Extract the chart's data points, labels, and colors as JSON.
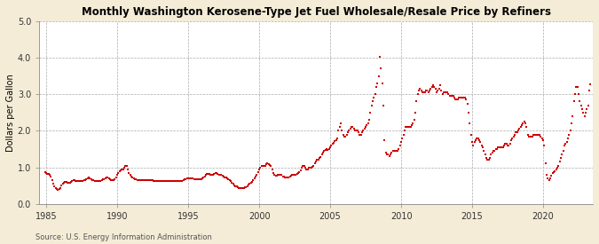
{
  "title": "Monthly Washington Kerosene-Type Jet Fuel Wholesale/Resale Price by Refiners",
  "ylabel": "Dollars per Gallon",
  "source": "Source: U.S. Energy Information Administration",
  "bg_outer": "#f5ecd7",
  "bg_inner": "#ffffff",
  "marker_color": "#cc0000",
  "xlim": [
    1984.5,
    2023.5
  ],
  "ylim": [
    0.0,
    5.0
  ],
  "yticks": [
    0.0,
    1.0,
    2.0,
    3.0,
    4.0,
    5.0
  ],
  "xticks": [
    1985,
    1990,
    1995,
    2000,
    2005,
    2010,
    2015,
    2020
  ],
  "data": [
    [
      1984.917,
      0.87
    ],
    [
      1985.0,
      0.85
    ],
    [
      1985.083,
      0.82
    ],
    [
      1985.167,
      0.82
    ],
    [
      1985.25,
      0.8
    ],
    [
      1985.333,
      0.75
    ],
    [
      1985.417,
      0.65
    ],
    [
      1985.5,
      0.55
    ],
    [
      1985.583,
      0.48
    ],
    [
      1985.667,
      0.42
    ],
    [
      1985.75,
      0.4
    ],
    [
      1985.833,
      0.38
    ],
    [
      1985.917,
      0.4
    ],
    [
      1986.0,
      0.42
    ],
    [
      1986.083,
      0.5
    ],
    [
      1986.167,
      0.55
    ],
    [
      1986.25,
      0.57
    ],
    [
      1986.333,
      0.6
    ],
    [
      1986.417,
      0.6
    ],
    [
      1986.5,
      0.58
    ],
    [
      1986.583,
      0.57
    ],
    [
      1986.667,
      0.58
    ],
    [
      1986.75,
      0.6
    ],
    [
      1986.833,
      0.62
    ],
    [
      1986.917,
      0.65
    ],
    [
      1987.0,
      0.65
    ],
    [
      1987.083,
      0.63
    ],
    [
      1987.167,
      0.62
    ],
    [
      1987.25,
      0.62
    ],
    [
      1987.333,
      0.63
    ],
    [
      1987.417,
      0.63
    ],
    [
      1987.5,
      0.63
    ],
    [
      1987.583,
      0.63
    ],
    [
      1987.667,
      0.64
    ],
    [
      1987.75,
      0.65
    ],
    [
      1987.833,
      0.67
    ],
    [
      1987.917,
      0.7
    ],
    [
      1988.0,
      0.72
    ],
    [
      1988.083,
      0.7
    ],
    [
      1988.167,
      0.68
    ],
    [
      1988.25,
      0.66
    ],
    [
      1988.333,
      0.65
    ],
    [
      1988.417,
      0.63
    ],
    [
      1988.5,
      0.62
    ],
    [
      1988.583,
      0.62
    ],
    [
      1988.667,
      0.63
    ],
    [
      1988.75,
      0.63
    ],
    [
      1988.833,
      0.63
    ],
    [
      1988.917,
      0.65
    ],
    [
      1989.0,
      0.67
    ],
    [
      1989.083,
      0.68
    ],
    [
      1989.167,
      0.7
    ],
    [
      1989.25,
      0.72
    ],
    [
      1989.333,
      0.72
    ],
    [
      1989.417,
      0.7
    ],
    [
      1989.5,
      0.68
    ],
    [
      1989.583,
      0.66
    ],
    [
      1989.667,
      0.65
    ],
    [
      1989.75,
      0.65
    ],
    [
      1989.833,
      0.67
    ],
    [
      1989.917,
      0.72
    ],
    [
      1990.0,
      0.8
    ],
    [
      1990.083,
      0.85
    ],
    [
      1990.167,
      0.9
    ],
    [
      1990.25,
      0.92
    ],
    [
      1990.333,
      0.95
    ],
    [
      1990.417,
      0.95
    ],
    [
      1990.5,
      1.0
    ],
    [
      1990.583,
      1.05
    ],
    [
      1990.667,
      1.05
    ],
    [
      1990.75,
      0.95
    ],
    [
      1990.833,
      0.85
    ],
    [
      1990.917,
      0.8
    ],
    [
      1991.0,
      0.75
    ],
    [
      1991.083,
      0.72
    ],
    [
      1991.167,
      0.7
    ],
    [
      1991.25,
      0.68
    ],
    [
      1991.333,
      0.67
    ],
    [
      1991.417,
      0.65
    ],
    [
      1991.5,
      0.65
    ],
    [
      1991.583,
      0.65
    ],
    [
      1991.667,
      0.65
    ],
    [
      1991.75,
      0.65
    ],
    [
      1991.833,
      0.65
    ],
    [
      1991.917,
      0.65
    ],
    [
      1992.0,
      0.65
    ],
    [
      1992.083,
      0.65
    ],
    [
      1992.167,
      0.65
    ],
    [
      1992.25,
      0.65
    ],
    [
      1992.333,
      0.65
    ],
    [
      1992.417,
      0.65
    ],
    [
      1992.5,
      0.65
    ],
    [
      1992.583,
      0.63
    ],
    [
      1992.667,
      0.62
    ],
    [
      1992.75,
      0.62
    ],
    [
      1992.833,
      0.62
    ],
    [
      1992.917,
      0.63
    ],
    [
      1993.0,
      0.63
    ],
    [
      1993.083,
      0.62
    ],
    [
      1993.167,
      0.62
    ],
    [
      1993.25,
      0.62
    ],
    [
      1993.333,
      0.62
    ],
    [
      1993.417,
      0.62
    ],
    [
      1993.5,
      0.62
    ],
    [
      1993.583,
      0.62
    ],
    [
      1993.667,
      0.62
    ],
    [
      1993.75,
      0.62
    ],
    [
      1993.833,
      0.62
    ],
    [
      1993.917,
      0.62
    ],
    [
      1994.0,
      0.62
    ],
    [
      1994.083,
      0.62
    ],
    [
      1994.167,
      0.62
    ],
    [
      1994.25,
      0.63
    ],
    [
      1994.333,
      0.63
    ],
    [
      1994.417,
      0.63
    ],
    [
      1994.5,
      0.63
    ],
    [
      1994.583,
      0.63
    ],
    [
      1994.667,
      0.65
    ],
    [
      1994.75,
      0.67
    ],
    [
      1994.833,
      0.68
    ],
    [
      1994.917,
      0.7
    ],
    [
      1995.0,
      0.7
    ],
    [
      1995.083,
      0.7
    ],
    [
      1995.167,
      0.7
    ],
    [
      1995.25,
      0.7
    ],
    [
      1995.333,
      0.7
    ],
    [
      1995.417,
      0.68
    ],
    [
      1995.5,
      0.67
    ],
    [
      1995.583,
      0.67
    ],
    [
      1995.667,
      0.67
    ],
    [
      1995.75,
      0.68
    ],
    [
      1995.833,
      0.68
    ],
    [
      1995.917,
      0.68
    ],
    [
      1996.0,
      0.7
    ],
    [
      1996.083,
      0.73
    ],
    [
      1996.167,
      0.75
    ],
    [
      1996.25,
      0.8
    ],
    [
      1996.333,
      0.82
    ],
    [
      1996.417,
      0.82
    ],
    [
      1996.5,
      0.82
    ],
    [
      1996.583,
      0.8
    ],
    [
      1996.667,
      0.8
    ],
    [
      1996.75,
      0.8
    ],
    [
      1996.833,
      0.82
    ],
    [
      1996.917,
      0.85
    ],
    [
      1997.0,
      0.85
    ],
    [
      1997.083,
      0.82
    ],
    [
      1997.167,
      0.8
    ],
    [
      1997.25,
      0.8
    ],
    [
      1997.333,
      0.8
    ],
    [
      1997.417,
      0.78
    ],
    [
      1997.5,
      0.75
    ],
    [
      1997.583,
      0.73
    ],
    [
      1997.667,
      0.72
    ],
    [
      1997.75,
      0.7
    ],
    [
      1997.833,
      0.68
    ],
    [
      1997.917,
      0.65
    ],
    [
      1998.0,
      0.62
    ],
    [
      1998.083,
      0.58
    ],
    [
      1998.167,
      0.55
    ],
    [
      1998.25,
      0.5
    ],
    [
      1998.333,
      0.48
    ],
    [
      1998.417,
      0.47
    ],
    [
      1998.5,
      0.46
    ],
    [
      1998.583,
      0.44
    ],
    [
      1998.667,
      0.44
    ],
    [
      1998.75,
      0.44
    ],
    [
      1998.833,
      0.44
    ],
    [
      1998.917,
      0.44
    ],
    [
      1999.0,
      0.45
    ],
    [
      1999.083,
      0.45
    ],
    [
      1999.167,
      0.48
    ],
    [
      1999.25,
      0.52
    ],
    [
      1999.333,
      0.55
    ],
    [
      1999.417,
      0.58
    ],
    [
      1999.5,
      0.6
    ],
    [
      1999.583,
      0.65
    ],
    [
      1999.667,
      0.7
    ],
    [
      1999.75,
      0.75
    ],
    [
      1999.833,
      0.8
    ],
    [
      1999.917,
      0.88
    ],
    [
      2000.0,
      0.95
    ],
    [
      2000.083,
      1.0
    ],
    [
      2000.167,
      1.05
    ],
    [
      2000.25,
      1.05
    ],
    [
      2000.333,
      1.05
    ],
    [
      2000.417,
      1.05
    ],
    [
      2000.5,
      1.08
    ],
    [
      2000.583,
      1.1
    ],
    [
      2000.667,
      1.08
    ],
    [
      2000.75,
      1.07
    ],
    [
      2000.833,
      1.05
    ],
    [
      2000.917,
      0.95
    ],
    [
      2001.0,
      0.85
    ],
    [
      2001.083,
      0.8
    ],
    [
      2001.167,
      0.78
    ],
    [
      2001.25,
      0.78
    ],
    [
      2001.333,
      0.8
    ],
    [
      2001.417,
      0.8
    ],
    [
      2001.5,
      0.8
    ],
    [
      2001.583,
      0.8
    ],
    [
      2001.667,
      0.75
    ],
    [
      2001.75,
      0.75
    ],
    [
      2001.833,
      0.72
    ],
    [
      2001.917,
      0.72
    ],
    [
      2002.0,
      0.72
    ],
    [
      2002.083,
      0.72
    ],
    [
      2002.167,
      0.75
    ],
    [
      2002.25,
      0.78
    ],
    [
      2002.333,
      0.8
    ],
    [
      2002.417,
      0.8
    ],
    [
      2002.5,
      0.8
    ],
    [
      2002.583,
      0.8
    ],
    [
      2002.667,
      0.82
    ],
    [
      2002.75,
      0.85
    ],
    [
      2002.833,
      0.88
    ],
    [
      2002.917,
      0.92
    ],
    [
      2003.0,
      1.0
    ],
    [
      2003.083,
      1.05
    ],
    [
      2003.167,
      1.05
    ],
    [
      2003.25,
      0.98
    ],
    [
      2003.333,
      0.95
    ],
    [
      2003.417,
      0.95
    ],
    [
      2003.5,
      0.98
    ],
    [
      2003.583,
      1.0
    ],
    [
      2003.667,
      1.0
    ],
    [
      2003.75,
      1.02
    ],
    [
      2003.833,
      1.05
    ],
    [
      2003.917,
      1.1
    ],
    [
      2004.0,
      1.15
    ],
    [
      2004.083,
      1.2
    ],
    [
      2004.167,
      1.22
    ],
    [
      2004.25,
      1.25
    ],
    [
      2004.333,
      1.28
    ],
    [
      2004.417,
      1.35
    ],
    [
      2004.5,
      1.4
    ],
    [
      2004.583,
      1.45
    ],
    [
      2004.667,
      1.48
    ],
    [
      2004.75,
      1.5
    ],
    [
      2004.833,
      1.48
    ],
    [
      2004.917,
      1.5
    ],
    [
      2005.0,
      1.55
    ],
    [
      2005.083,
      1.6
    ],
    [
      2005.167,
      1.65
    ],
    [
      2005.25,
      1.68
    ],
    [
      2005.333,
      1.72
    ],
    [
      2005.417,
      1.75
    ],
    [
      2005.5,
      1.8
    ],
    [
      2005.583,
      2.0
    ],
    [
      2005.667,
      2.1
    ],
    [
      2005.75,
      2.2
    ],
    [
      2005.833,
      2.0
    ],
    [
      2005.917,
      1.9
    ],
    [
      2006.0,
      1.85
    ],
    [
      2006.083,
      1.85
    ],
    [
      2006.167,
      1.9
    ],
    [
      2006.25,
      1.95
    ],
    [
      2006.333,
      2.0
    ],
    [
      2006.417,
      2.05
    ],
    [
      2006.5,
      2.1
    ],
    [
      2006.583,
      2.1
    ],
    [
      2006.667,
      2.05
    ],
    [
      2006.75,
      2.0
    ],
    [
      2006.833,
      2.0
    ],
    [
      2006.917,
      2.0
    ],
    [
      2007.0,
      1.95
    ],
    [
      2007.083,
      1.9
    ],
    [
      2007.167,
      1.9
    ],
    [
      2007.25,
      1.95
    ],
    [
      2007.333,
      2.0
    ],
    [
      2007.417,
      2.05
    ],
    [
      2007.5,
      2.1
    ],
    [
      2007.583,
      2.15
    ],
    [
      2007.667,
      2.2
    ],
    [
      2007.75,
      2.3
    ],
    [
      2007.833,
      2.5
    ],
    [
      2007.917,
      2.7
    ],
    [
      2008.0,
      2.8
    ],
    [
      2008.083,
      2.9
    ],
    [
      2008.167,
      3.0
    ],
    [
      2008.25,
      3.2
    ],
    [
      2008.333,
      3.3
    ],
    [
      2008.417,
      3.5
    ],
    [
      2008.5,
      4.02
    ],
    [
      2008.583,
      3.7
    ],
    [
      2008.667,
      3.3
    ],
    [
      2008.75,
      2.7
    ],
    [
      2008.833,
      1.75
    ],
    [
      2008.917,
      1.4
    ],
    [
      2009.0,
      1.35
    ],
    [
      2009.083,
      1.35
    ],
    [
      2009.167,
      1.3
    ],
    [
      2009.25,
      1.35
    ],
    [
      2009.333,
      1.4
    ],
    [
      2009.417,
      1.45
    ],
    [
      2009.5,
      1.45
    ],
    [
      2009.583,
      1.45
    ],
    [
      2009.667,
      1.45
    ],
    [
      2009.75,
      1.45
    ],
    [
      2009.833,
      1.5
    ],
    [
      2009.917,
      1.6
    ],
    [
      2010.0,
      1.7
    ],
    [
      2010.083,
      1.8
    ],
    [
      2010.167,
      1.9
    ],
    [
      2010.25,
      2.0
    ],
    [
      2010.333,
      2.1
    ],
    [
      2010.417,
      2.1
    ],
    [
      2010.5,
      2.1
    ],
    [
      2010.583,
      2.1
    ],
    [
      2010.667,
      2.1
    ],
    [
      2010.75,
      2.15
    ],
    [
      2010.833,
      2.2
    ],
    [
      2010.917,
      2.3
    ],
    [
      2011.0,
      2.5
    ],
    [
      2011.083,
      2.8
    ],
    [
      2011.167,
      3.0
    ],
    [
      2011.25,
      3.1
    ],
    [
      2011.333,
      3.15
    ],
    [
      2011.417,
      3.1
    ],
    [
      2011.5,
      3.05
    ],
    [
      2011.583,
      3.05
    ],
    [
      2011.667,
      3.05
    ],
    [
      2011.75,
      3.1
    ],
    [
      2011.833,
      3.1
    ],
    [
      2011.917,
      3.05
    ],
    [
      2012.0,
      3.1
    ],
    [
      2012.083,
      3.15
    ],
    [
      2012.167,
      3.2
    ],
    [
      2012.25,
      3.25
    ],
    [
      2012.333,
      3.2
    ],
    [
      2012.417,
      3.15
    ],
    [
      2012.5,
      3.05
    ],
    [
      2012.583,
      3.1
    ],
    [
      2012.667,
      3.15
    ],
    [
      2012.75,
      3.25
    ],
    [
      2012.833,
      3.1
    ],
    [
      2012.917,
      3.0
    ],
    [
      2013.0,
      3.05
    ],
    [
      2013.083,
      3.05
    ],
    [
      2013.167,
      3.05
    ],
    [
      2013.25,
      3.05
    ],
    [
      2013.333,
      3.0
    ],
    [
      2013.417,
      2.95
    ],
    [
      2013.5,
      2.95
    ],
    [
      2013.583,
      2.95
    ],
    [
      2013.667,
      2.95
    ],
    [
      2013.75,
      2.9
    ],
    [
      2013.833,
      2.85
    ],
    [
      2013.917,
      2.85
    ],
    [
      2014.0,
      2.85
    ],
    [
      2014.083,
      2.9
    ],
    [
      2014.167,
      2.9
    ],
    [
      2014.25,
      2.9
    ],
    [
      2014.333,
      2.9
    ],
    [
      2014.417,
      2.9
    ],
    [
      2014.5,
      2.9
    ],
    [
      2014.583,
      2.85
    ],
    [
      2014.667,
      2.75
    ],
    [
      2014.75,
      2.5
    ],
    [
      2014.833,
      2.2
    ],
    [
      2014.917,
      1.9
    ],
    [
      2015.0,
      1.7
    ],
    [
      2015.083,
      1.6
    ],
    [
      2015.167,
      1.7
    ],
    [
      2015.25,
      1.75
    ],
    [
      2015.333,
      1.8
    ],
    [
      2015.417,
      1.8
    ],
    [
      2015.5,
      1.75
    ],
    [
      2015.583,
      1.7
    ],
    [
      2015.667,
      1.6
    ],
    [
      2015.75,
      1.55
    ],
    [
      2015.833,
      1.45
    ],
    [
      2015.917,
      1.35
    ],
    [
      2016.0,
      1.25
    ],
    [
      2016.083,
      1.2
    ],
    [
      2016.167,
      1.2
    ],
    [
      2016.25,
      1.25
    ],
    [
      2016.333,
      1.35
    ],
    [
      2016.417,
      1.4
    ],
    [
      2016.5,
      1.45
    ],
    [
      2016.583,
      1.45
    ],
    [
      2016.667,
      1.5
    ],
    [
      2016.75,
      1.5
    ],
    [
      2016.833,
      1.55
    ],
    [
      2016.917,
      1.55
    ],
    [
      2017.0,
      1.55
    ],
    [
      2017.083,
      1.55
    ],
    [
      2017.167,
      1.55
    ],
    [
      2017.25,
      1.6
    ],
    [
      2017.333,
      1.65
    ],
    [
      2017.417,
      1.65
    ],
    [
      2017.5,
      1.6
    ],
    [
      2017.583,
      1.6
    ],
    [
      2017.667,
      1.65
    ],
    [
      2017.75,
      1.75
    ],
    [
      2017.833,
      1.8
    ],
    [
      2017.917,
      1.85
    ],
    [
      2018.0,
      1.9
    ],
    [
      2018.083,
      1.95
    ],
    [
      2018.167,
      1.95
    ],
    [
      2018.25,
      2.0
    ],
    [
      2018.333,
      2.05
    ],
    [
      2018.417,
      2.1
    ],
    [
      2018.5,
      2.15
    ],
    [
      2018.583,
      2.2
    ],
    [
      2018.667,
      2.25
    ],
    [
      2018.75,
      2.2
    ],
    [
      2018.833,
      2.1
    ],
    [
      2018.917,
      1.9
    ],
    [
      2019.0,
      1.85
    ],
    [
      2019.083,
      1.85
    ],
    [
      2019.167,
      1.85
    ],
    [
      2019.25,
      1.85
    ],
    [
      2019.333,
      1.9
    ],
    [
      2019.417,
      1.9
    ],
    [
      2019.5,
      1.9
    ],
    [
      2019.583,
      1.9
    ],
    [
      2019.667,
      1.9
    ],
    [
      2019.75,
      1.9
    ],
    [
      2019.833,
      1.85
    ],
    [
      2019.917,
      1.8
    ],
    [
      2020.0,
      1.75
    ],
    [
      2020.083,
      1.6
    ],
    [
      2020.167,
      1.1
    ],
    [
      2020.25,
      0.8
    ],
    [
      2020.333,
      0.7
    ],
    [
      2020.417,
      0.65
    ],
    [
      2020.5,
      0.7
    ],
    [
      2020.583,
      0.78
    ],
    [
      2020.667,
      0.85
    ],
    [
      2020.75,
      0.88
    ],
    [
      2020.833,
      0.9
    ],
    [
      2020.917,
      0.95
    ],
    [
      2021.0,
      1.0
    ],
    [
      2021.083,
      1.05
    ],
    [
      2021.167,
      1.15
    ],
    [
      2021.25,
      1.25
    ],
    [
      2021.333,
      1.35
    ],
    [
      2021.417,
      1.45
    ],
    [
      2021.5,
      1.6
    ],
    [
      2021.583,
      1.65
    ],
    [
      2021.667,
      1.7
    ],
    [
      2021.75,
      1.8
    ],
    [
      2021.833,
      1.9
    ],
    [
      2021.917,
      2.0
    ],
    [
      2022.0,
      2.2
    ],
    [
      2022.083,
      2.4
    ],
    [
      2022.167,
      2.8
    ],
    [
      2022.25,
      3.0
    ],
    [
      2022.333,
      3.2
    ],
    [
      2022.417,
      3.2
    ],
    [
      2022.5,
      3.0
    ],
    [
      2022.583,
      2.8
    ],
    [
      2022.667,
      2.7
    ],
    [
      2022.75,
      2.6
    ],
    [
      2022.833,
      2.5
    ],
    [
      2022.917,
      2.4
    ],
    [
      2023.0,
      2.5
    ],
    [
      2023.083,
      2.6
    ],
    [
      2023.167,
      2.7
    ],
    [
      2023.25,
      3.1
    ],
    [
      2023.333,
      3.28
    ]
  ]
}
